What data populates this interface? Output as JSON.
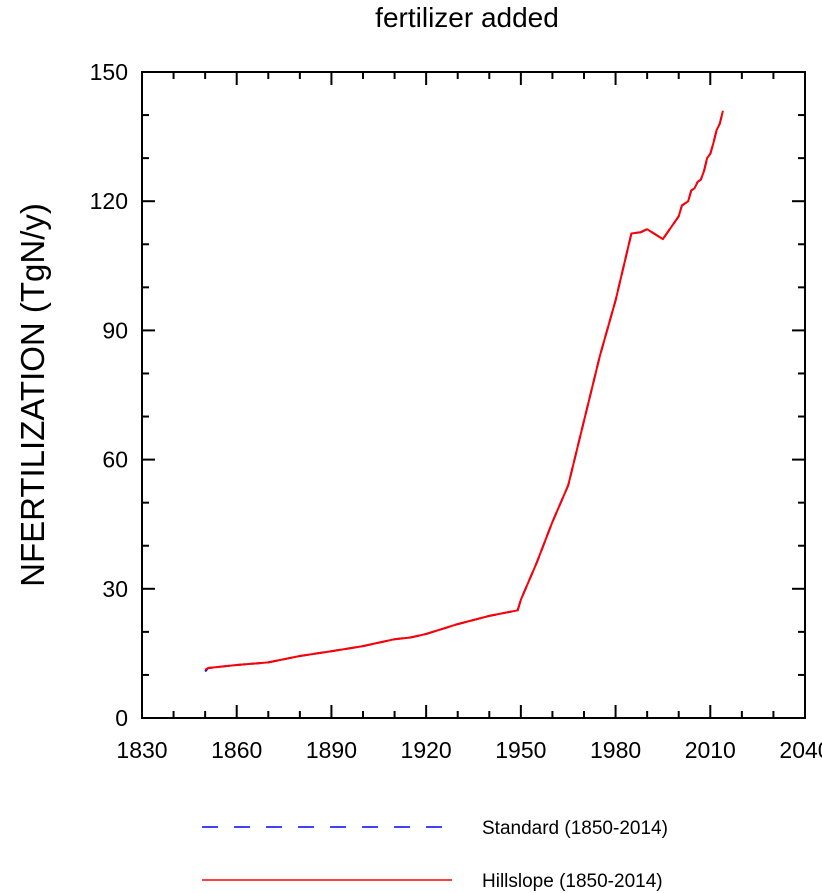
{
  "chart_data": {
    "type": "line",
    "title": "fertilizer added",
    "xlabel": "",
    "ylabel": "NFERTILIZATION  (TgN/y)",
    "xlim": [
      1830,
      2040
    ],
    "ylim": [
      0,
      150
    ],
    "x_ticks": [
      1830,
      1860,
      1890,
      1920,
      1950,
      1980,
      2010,
      2040
    ],
    "y_ticks": [
      0,
      30,
      60,
      90,
      120,
      150
    ],
    "x_tick_labels": [
      "1830",
      "1860",
      "1890",
      "1920",
      "1950",
      "1980",
      "2010",
      "2040"
    ],
    "y_tick_labels": [
      "0",
      "30",
      "60",
      "90",
      "120",
      "150"
    ],
    "grid": false,
    "legend_position": "bottom",
    "series": [
      {
        "name": "Standard (1850-2014)",
        "color": "#0000ff",
        "line_style": "dashed",
        "x": [
          1850,
          1851,
          1860,
          1870,
          1880,
          1890,
          1900,
          1910,
          1915,
          1920,
          1930,
          1940,
          1949,
          1950,
          1955,
          1960,
          1965,
          1970,
          1975,
          1980,
          1985,
          1988,
          1990,
          1995,
          2000,
          2001,
          2002,
          2003,
          2004,
          2005,
          2006,
          2007,
          2008,
          2009,
          2010,
          2011,
          2012,
          2013,
          2014
        ],
        "y": [
          10.8,
          11.6,
          12.3,
          12.9,
          14.4,
          15.5,
          16.7,
          18.3,
          18.7,
          19.5,
          21.8,
          23.7,
          25.0,
          27.5,
          36.0,
          45.5,
          54.0,
          69.0,
          84.0,
          97.0,
          112.5,
          112.8,
          113.5,
          111.2,
          116.5,
          119.0,
          119.5,
          120.0,
          122.5,
          123.0,
          124.5,
          125.0,
          127.0,
          130.0,
          131.0,
          133.5,
          136.5,
          138.0,
          141.0
        ]
      },
      {
        "name": "Hillslope (1850-2014)",
        "color": "#ff0000",
        "line_style": "solid",
        "x": [
          1850,
          1851,
          1860,
          1870,
          1880,
          1890,
          1900,
          1910,
          1915,
          1920,
          1930,
          1940,
          1949,
          1950,
          1955,
          1960,
          1965,
          1970,
          1975,
          1980,
          1985,
          1988,
          1990,
          1995,
          2000,
          2001,
          2002,
          2003,
          2004,
          2005,
          2006,
          2007,
          2008,
          2009,
          2010,
          2011,
          2012,
          2013,
          2014
        ],
        "y": [
          11.2,
          11.6,
          12.3,
          12.9,
          14.4,
          15.5,
          16.7,
          18.3,
          18.7,
          19.5,
          21.8,
          23.7,
          25.0,
          27.5,
          36.0,
          45.5,
          54.0,
          69.0,
          84.0,
          97.0,
          112.5,
          112.8,
          113.5,
          111.2,
          116.5,
          119.0,
          119.5,
          120.0,
          122.5,
          123.0,
          124.5,
          125.0,
          127.0,
          130.0,
          131.0,
          133.5,
          136.5,
          138.0,
          141.0
        ]
      }
    ]
  }
}
